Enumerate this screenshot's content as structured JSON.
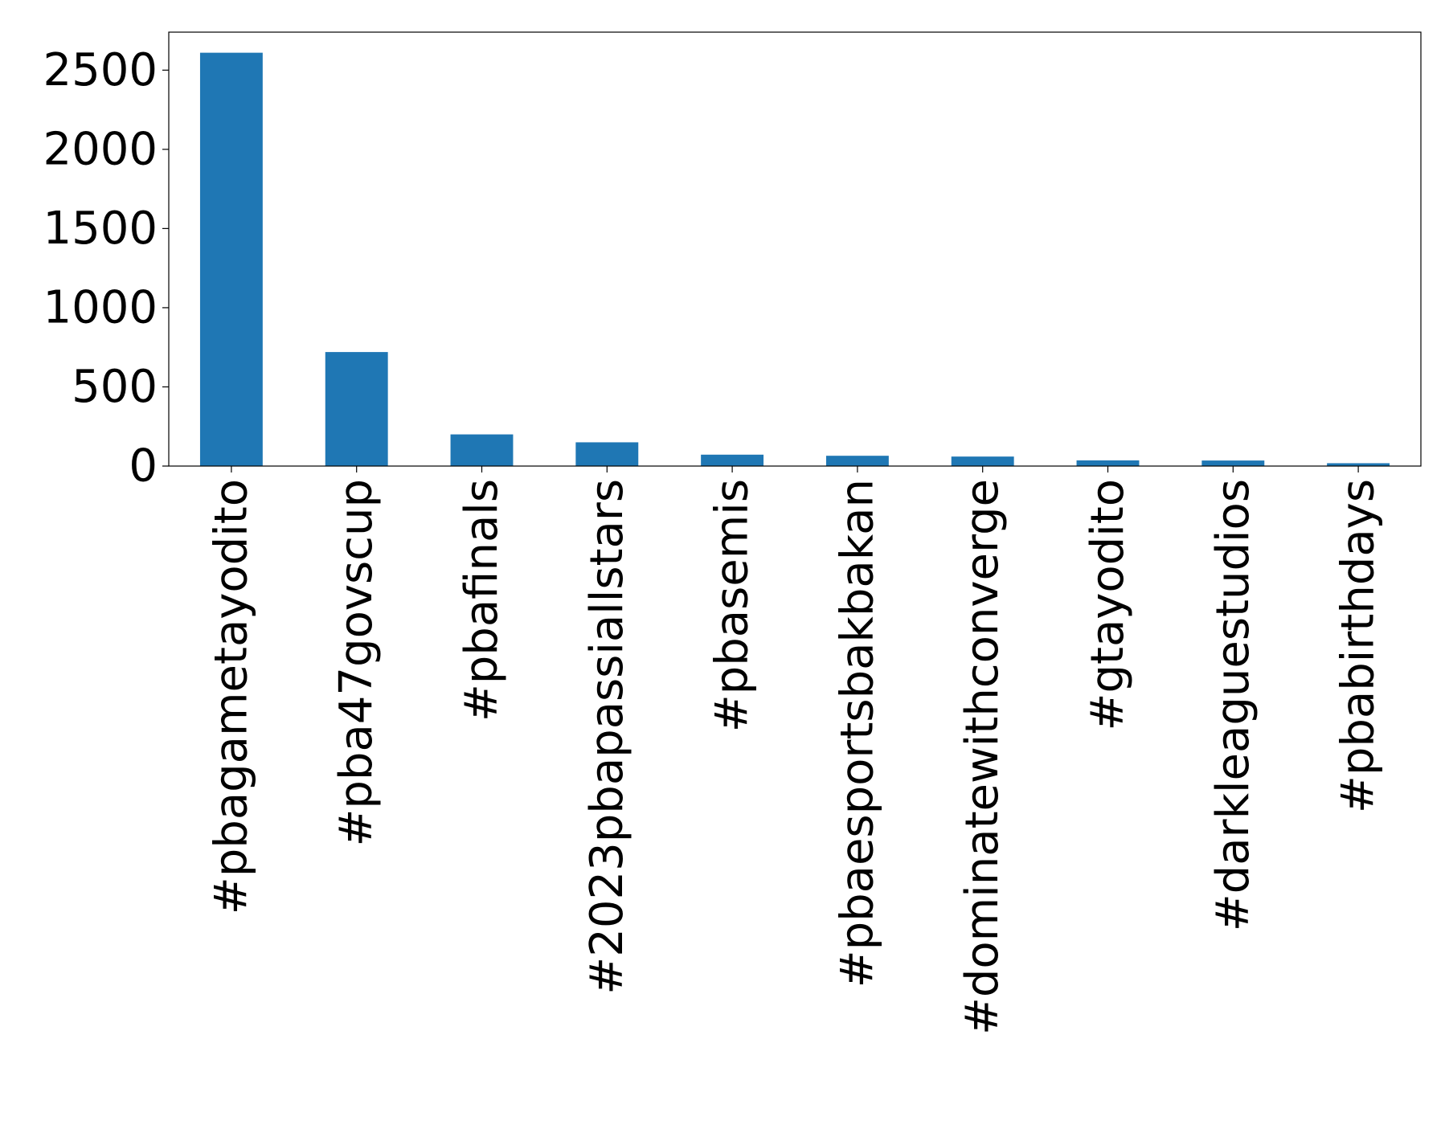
{
  "chart_data": {
    "type": "bar",
    "title": "",
    "xlabel": "",
    "ylabel": "",
    "categories": [
      "#pbagametayodito",
      "#pba47govscup",
      "#pbafinals",
      "#2023pbapassiallstars",
      "#pbasemis",
      "#pbaesportsbakbakan",
      "#dominatewithconverge",
      "#gtayodito",
      "#darkleaguestudios",
      "#pbabirthdays"
    ],
    "values": [
      2610,
      720,
      200,
      150,
      72,
      65,
      60,
      36,
      35,
      18
    ],
    "ylim": [
      0,
      2740
    ],
    "yticks": [
      0,
      500,
      1000,
      1500,
      2000,
      2500
    ],
    "grid": false,
    "legend": "none",
    "bar_color": "#1f77b4"
  }
}
